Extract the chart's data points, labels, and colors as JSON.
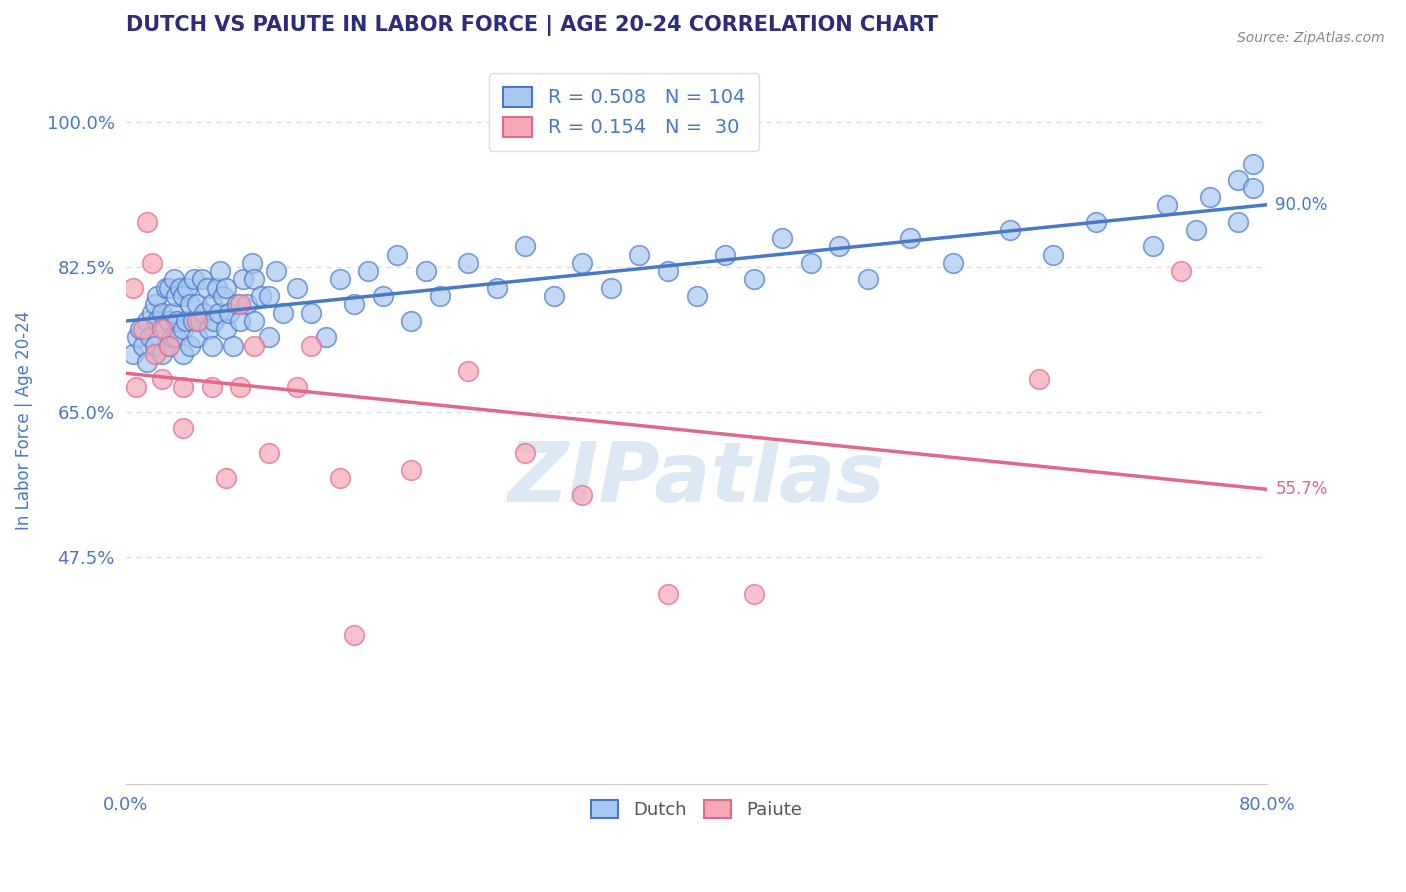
{
  "title": "DUTCH VS PAIUTE IN LABOR FORCE | AGE 20-24 CORRELATION CHART",
  "source_text": "Source: ZipAtlas.com",
  "ylabel": "In Labor Force | Age 20-24",
  "xlim": [
    0.0,
    0.8
  ],
  "ylim": [
    0.2,
    1.08
  ],
  "xticks": [
    0.0,
    0.1,
    0.2,
    0.3,
    0.4,
    0.5,
    0.6,
    0.7,
    0.8
  ],
  "xticklabels": [
    "0.0%",
    "",
    "",
    "",
    "",
    "",
    "",
    "",
    "80.0%"
  ],
  "yticks": [
    0.475,
    0.65,
    0.825,
    1.0
  ],
  "yticklabels": [
    "47.5%",
    "65.0%",
    "82.5%",
    "100.0%"
  ],
  "dutch_color": "#a8c8f0",
  "paiute_color": "#f4a8b8",
  "dutch_line_color": "#4878c8",
  "paiute_line_color": "#e06888",
  "dutch_R": 0.508,
  "dutch_N": 104,
  "paiute_R": 0.154,
  "paiute_N": 30,
  "title_color": "#2c2c7c",
  "axis_label_color": "#4878c8",
  "tick_color": "#4878c8",
  "grid_color": "#d0dff0",
  "watermark_text": "ZIPatlas",
  "watermark_color": "#dde8f5",
  "legend_dutch_label": "Dutch",
  "legend_paiute_label": "Paiute",
  "background_color": "#ffffff",
  "dutch_x": [
    0.005,
    0.008,
    0.01,
    0.012,
    0.015,
    0.015,
    0.017,
    0.018,
    0.02,
    0.02,
    0.022,
    0.022,
    0.025,
    0.025,
    0.027,
    0.028,
    0.03,
    0.03,
    0.03,
    0.032,
    0.033,
    0.034,
    0.035,
    0.035,
    0.036,
    0.038,
    0.04,
    0.04,
    0.04,
    0.042,
    0.043,
    0.045,
    0.045,
    0.047,
    0.048,
    0.05,
    0.05,
    0.052,
    0.053,
    0.055,
    0.057,
    0.058,
    0.06,
    0.06,
    0.062,
    0.064,
    0.065,
    0.066,
    0.068,
    0.07,
    0.07,
    0.072,
    0.075,
    0.078,
    0.08,
    0.082,
    0.085,
    0.088,
    0.09,
    0.09,
    0.095,
    0.1,
    0.1,
    0.105,
    0.11,
    0.12,
    0.13,
    0.14,
    0.15,
    0.16,
    0.17,
    0.18,
    0.19,
    0.2,
    0.21,
    0.22,
    0.24,
    0.26,
    0.28,
    0.3,
    0.32,
    0.34,
    0.36,
    0.38,
    0.4,
    0.42,
    0.44,
    0.46,
    0.48,
    0.5,
    0.52,
    0.55,
    0.58,
    0.62,
    0.65,
    0.68,
    0.72,
    0.73,
    0.75,
    0.76,
    0.78,
    0.78,
    0.79,
    0.79
  ],
  "dutch_y": [
    0.72,
    0.74,
    0.75,
    0.73,
    0.71,
    0.76,
    0.74,
    0.77,
    0.73,
    0.78,
    0.76,
    0.79,
    0.72,
    0.77,
    0.75,
    0.8,
    0.73,
    0.76,
    0.8,
    0.74,
    0.77,
    0.81,
    0.74,
    0.79,
    0.76,
    0.8,
    0.72,
    0.75,
    0.79,
    0.76,
    0.8,
    0.73,
    0.78,
    0.76,
    0.81,
    0.74,
    0.78,
    0.76,
    0.81,
    0.77,
    0.8,
    0.75,
    0.73,
    0.78,
    0.76,
    0.8,
    0.77,
    0.82,
    0.79,
    0.75,
    0.8,
    0.77,
    0.73,
    0.78,
    0.76,
    0.81,
    0.78,
    0.83,
    0.76,
    0.81,
    0.79,
    0.74,
    0.79,
    0.82,
    0.77,
    0.8,
    0.77,
    0.74,
    0.81,
    0.78,
    0.82,
    0.79,
    0.84,
    0.76,
    0.82,
    0.79,
    0.83,
    0.8,
    0.85,
    0.79,
    0.83,
    0.8,
    0.84,
    0.82,
    0.79,
    0.84,
    0.81,
    0.86,
    0.83,
    0.85,
    0.81,
    0.86,
    0.83,
    0.87,
    0.84,
    0.88,
    0.85,
    0.9,
    0.87,
    0.91,
    0.88,
    0.93,
    0.92,
    0.95
  ],
  "paiute_x": [
    0.005,
    0.007,
    0.012,
    0.015,
    0.018,
    0.02,
    0.025,
    0.025,
    0.03,
    0.04,
    0.04,
    0.05,
    0.06,
    0.07,
    0.08,
    0.08,
    0.09,
    0.1,
    0.12,
    0.13,
    0.15,
    0.16,
    0.2,
    0.24,
    0.28,
    0.32,
    0.38,
    0.44,
    0.64,
    0.74
  ],
  "paiute_y": [
    0.8,
    0.68,
    0.75,
    0.88,
    0.83,
    0.72,
    0.75,
    0.69,
    0.73,
    0.68,
    0.63,
    0.76,
    0.68,
    0.57,
    0.78,
    0.68,
    0.73,
    0.6,
    0.68,
    0.73,
    0.57,
    0.38,
    0.58,
    0.7,
    0.6,
    0.55,
    0.43,
    0.43,
    0.69,
    0.82
  ]
}
